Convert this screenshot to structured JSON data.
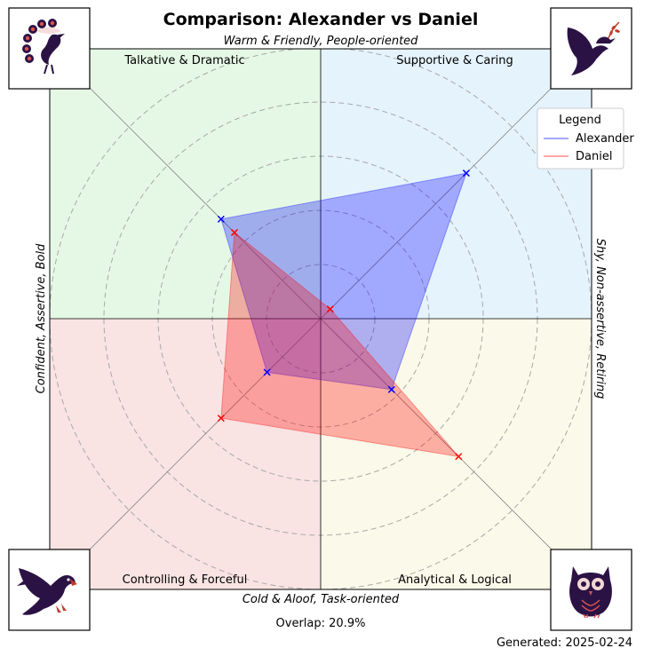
{
  "chart_data": {
    "type": "radar",
    "title": "Comparison: Alexander vs Daniel",
    "axes": {
      "top": "Warm & Friendly, People-oriented",
      "bottom": "Cold & Aloof, Task-oriented",
      "left": "Confident, Assertive, Bold",
      "right": "Shy, Non-assertive, Retiring"
    },
    "quadrants": {
      "top_left": "Talkative & Dramatic",
      "top_right": "Supportive & Caring",
      "bottom_left": "Controlling & Forceful",
      "bottom_right": "Analytical & Logical"
    },
    "quadrant_colors": {
      "top_left": "#e5f8e5",
      "top_right": "#e5f3fd",
      "bottom_left": "#f9e3e3",
      "bottom_right": "#fbf9e9"
    },
    "directions": [
      "top-right (Supportive)",
      "bottom-right (Analytical)",
      "bottom-left (Controlling)",
      "top-left (Talkative)"
    ],
    "scale_max": 10,
    "rings": [
      2,
      4,
      6,
      8,
      10
    ],
    "series": [
      {
        "name": "Alexander",
        "color": "#0000ff",
        "values": [
          7.6,
          3.7,
          2.8,
          5.2
        ]
      },
      {
        "name": "Daniel",
        "color": "#ff0000",
        "values": [
          0.5,
          7.2,
          5.2,
          4.5
        ]
      }
    ],
    "legend": {
      "title": "Legend",
      "position": "top-right"
    },
    "corner_icons": [
      "peacock-icon",
      "dove-icon",
      "eagle-icon",
      "owl-icon"
    ]
  },
  "footer": {
    "overlap": "Overlap: 20.9%",
    "generated": "Generated: 2025-02-24"
  }
}
